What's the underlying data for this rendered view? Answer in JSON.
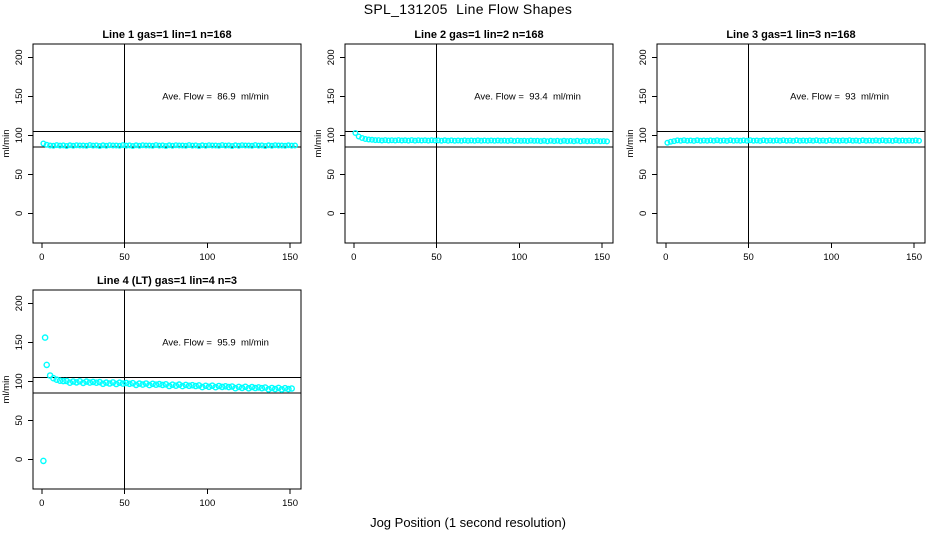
{
  "colors": {
    "marker": "#00ffff",
    "axis": "#000000",
    "background": "#ffffff"
  },
  "chart_data": {
    "type": "scatter",
    "suptitle": "SPL_131205  Line Flow Shapes",
    "xlabel": "Jog Position (1 second resolution)",
    "grid": false,
    "panels": [
      {
        "title": "Line 1 gas=1 lin=1 n=168",
        "annotation": "Ave. Flow =  86.9  ml/min",
        "annotation_pos": {
          "x": 105,
          "y": 150
        },
        "ave_flow_ml_min": 86.9,
        "ylabel": "ml/min",
        "xlim": [
          -5.3,
          156.6
        ],
        "ylim": [
          -38,
          217
        ],
        "xticks": [
          0,
          50,
          100,
          150
        ],
        "yticks": [
          0,
          50,
          100,
          150,
          200
        ],
        "hlines": [
          85,
          105
        ],
        "vline": 50,
        "marker_r": 2.3,
        "series": {
          "x0": 1,
          "dx": 2,
          "y": [
            89.5,
            88,
            87,
            86.5,
            87.4,
            86.8,
            87.1,
            86.3,
            87.2,
            86.6,
            87.3,
            86.9,
            87,
            86.5,
            87.4,
            86.8,
            87.1,
            86.3,
            87.2,
            86.6,
            87.3,
            86.9,
            87,
            86.5,
            87.4,
            86.8,
            87.1,
            86.3,
            87.2,
            86.6,
            87.3,
            86.9,
            87,
            86.5,
            87.4,
            86.8,
            87.1,
            86.3,
            87.2,
            86.6,
            87.3,
            86.9,
            87,
            86.5,
            87.4,
            86.8,
            87.1,
            86.3,
            87.2,
            86.6,
            87.3,
            86.9,
            87,
            86.5,
            87.4,
            86.8,
            87.1,
            86.3,
            87.2,
            86.6,
            87.3,
            86.9,
            87,
            86.5,
            87.4,
            86.8,
            87.1,
            86.3,
            87.2,
            86.6,
            87.3,
            86.9,
            87,
            86.5,
            87.2,
            86.8,
            87
          ]
        },
        "extra_points": []
      },
      {
        "title": "Line 2 gas=1 lin=2 n=168",
        "annotation": "Ave. Flow =  93.4  ml/min",
        "annotation_pos": {
          "x": 105,
          "y": 150
        },
        "ave_flow_ml_min": 93.4,
        "ylabel": "ml/min",
        "xlim": [
          -5.3,
          156.6
        ],
        "ylim": [
          -38,
          217
        ],
        "xticks": [
          0,
          50,
          100,
          150
        ],
        "yticks": [
          0,
          50,
          100,
          150,
          200
        ],
        "hlines": [
          85,
          105
        ],
        "vline": 50,
        "marker_r": 2.3,
        "series": {
          "x0": 1,
          "dx": 2,
          "y": [
            103,
            98.5,
            96.5,
            95.3,
            94.6,
            94.2,
            93.9,
            93.9,
            93.3,
            93.8,
            93.4,
            93.7,
            93.3,
            93.8,
            93.4,
            93.6,
            93.2,
            93.8,
            93.2,
            93.7,
            93.3,
            93.6,
            93.2,
            93.7,
            93.3,
            93.5,
            93.1,
            93.6,
            93.0,
            93.5,
            93.1,
            93.4,
            93.0,
            93.5,
            93.1,
            93.3,
            92.9,
            93.5,
            92.9,
            93.4,
            93.0,
            93.3,
            92.9,
            93.4,
            93.0,
            93.2,
            92.8,
            93.3,
            92.7,
            93.2,
            92.8,
            93.1,
            92.7,
            93.2,
            92.8,
            93.0,
            92.6,
            93.1,
            92.5,
            93.0,
            92.6,
            92.9,
            92.5,
            93.0,
            92.6,
            92.8,
            92.4,
            92.9,
            92.3,
            92.8,
            92.4,
            92.7,
            92.3,
            92.8,
            92.4,
            92.6,
            92.2
          ]
        },
        "extra_points": []
      },
      {
        "title": "Line 3 gas=1 lin=3 n=168",
        "annotation": "Ave. Flow =  93  ml/min",
        "annotation_pos": {
          "x": 105,
          "y": 150
        },
        "ave_flow_ml_min": 93,
        "ylabel": "ml/min",
        "xlim": [
          -5.3,
          156.6
        ],
        "ylim": [
          -38,
          217
        ],
        "xticks": [
          0,
          50,
          100,
          150
        ],
        "yticks": [
          0,
          50,
          100,
          150,
          200
        ],
        "hlines": [
          85,
          105
        ],
        "vline": 50,
        "marker_r": 2.3,
        "series": {
          "x0": 1,
          "dx": 2,
          "y": [
            90.5,
            91.8,
            92.6,
            93.5,
            92.9,
            93.7,
            93.1,
            93.4,
            92.8,
            93.6,
            93.0,
            93.3,
            92.9,
            93.5,
            92.9,
            93.7,
            93.1,
            93.4,
            92.8,
            93.6,
            93.0,
            93.3,
            92.9,
            93.5,
            92.9,
            93.7,
            93.1,
            93.4,
            92.8,
            93.6,
            93.0,
            93.3,
            92.9,
            93.5,
            92.9,
            93.7,
            93.1,
            93.4,
            92.8,
            93.6,
            93.0,
            93.3,
            92.9,
            93.5,
            92.9,
            93.7,
            93.1,
            93.4,
            92.8,
            93.6,
            93.0,
            93.3,
            92.9,
            93.5,
            92.9,
            93.7,
            93.1,
            93.4,
            92.8,
            93.6,
            93.0,
            93.3,
            92.9,
            93.5,
            92.9,
            93.7,
            93.1,
            93.4,
            92.8,
            93.6,
            93.0,
            93.3,
            92.9,
            93.4,
            93.0,
            93.5,
            93.1
          ]
        },
        "extra_points": []
      },
      {
        "title": "Line 4 (LT) gas=1 lin=4 n=3",
        "annotation": "Ave. Flow =  95.9  ml/min",
        "annotation_pos": {
          "x": 105,
          "y": 150
        },
        "ave_flow_ml_min": 95.9,
        "ylabel": "ml/min",
        "xlim": [
          -5.3,
          156.6
        ],
        "ylim": [
          -38,
          217
        ],
        "xticks": [
          0,
          50,
          100,
          150
        ],
        "yticks": [
          0,
          50,
          100,
          150,
          200
        ],
        "hlines": [
          85,
          105
        ],
        "vline": 50,
        "marker_r": 2.6,
        "series": {
          "x0": 5,
          "dx": 2,
          "y": [
            107.5,
            104,
            102,
            100.8,
            100.2,
            100.4,
            98.2,
            99.8,
            98.6,
            100.0,
            98.0,
            99.6,
            98.4,
            99.2,
            98.2,
            99.0,
            96.8,
            98.4,
            97.2,
            98.6,
            96.6,
            98.2,
            97.0,
            97.8,
            96.8,
            97.6,
            95.4,
            97.0,
            95.8,
            97.2,
            95.2,
            96.8,
            95.6,
            96.4,
            95.4,
            96.2,
            94.0,
            95.6,
            94.4,
            95.8,
            93.8,
            95.4,
            94.2,
            95.0,
            94.0,
            94.8,
            92.6,
            94.2,
            93.0,
            94.4,
            92.4,
            94.0,
            92.8,
            93.6,
            92.6,
            93.4,
            91.2,
            92.8,
            91.6,
            93.0,
            91.0,
            92.6,
            91.4,
            92.2,
            91.2,
            92.0,
            89.8,
            91.4,
            90.2,
            91.6,
            89.6,
            91.2,
            90.0,
            90.8
          ]
        },
        "extra_points": [
          [
            1,
            -2
          ],
          [
            2,
            156
          ],
          [
            3,
            121
          ]
        ]
      }
    ]
  }
}
